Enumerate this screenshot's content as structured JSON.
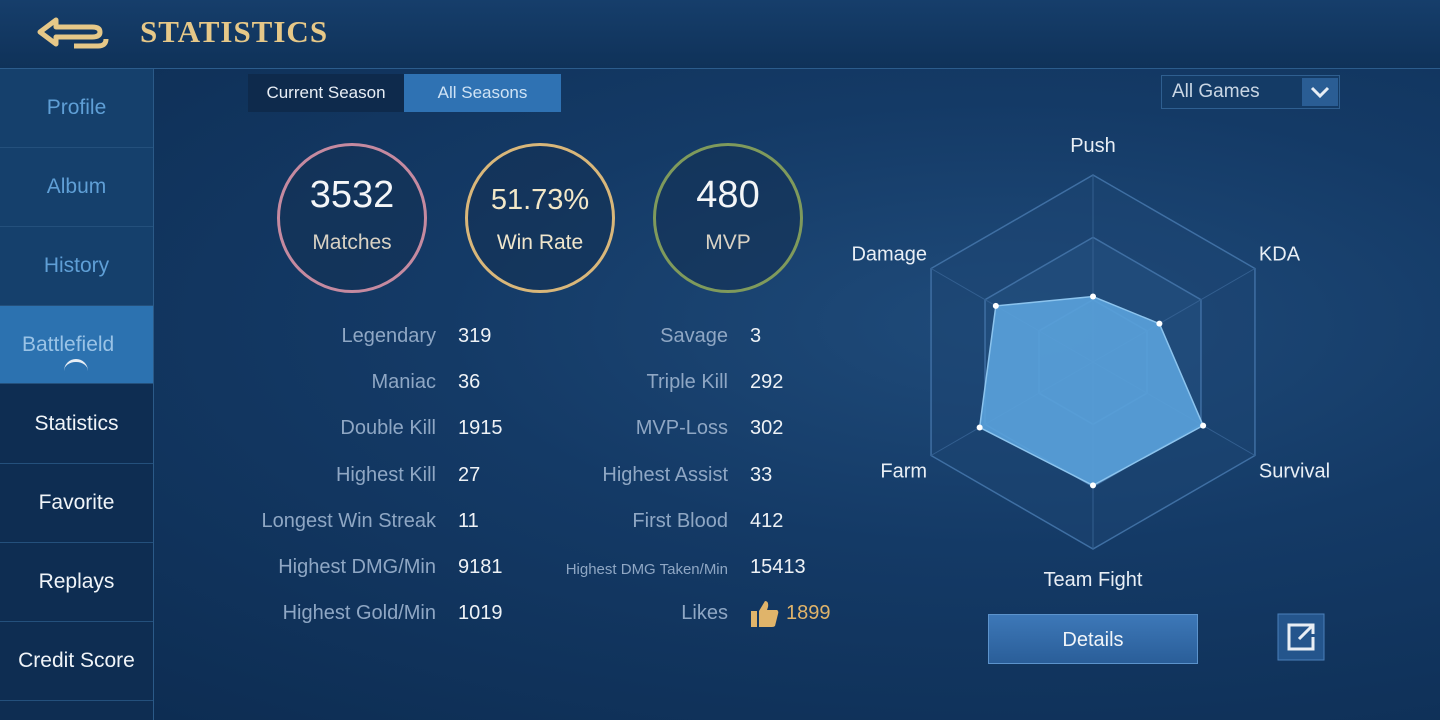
{
  "header": {
    "title": "STATISTICS"
  },
  "sidebar": [
    "Profile",
    "Album",
    "History",
    "Battlefield",
    "Statistics",
    "Favorite",
    "Replays",
    "Credit Score"
  ],
  "tabs": [
    "Current Season",
    "All Seasons"
  ],
  "filter": "All Games",
  "summary": [
    {
      "value": "3532",
      "label": "Matches"
    },
    {
      "value": "51.73%",
      "label": "Win Rate"
    },
    {
      "value": "480",
      "label": "MVP"
    }
  ],
  "stats": {
    "left": [
      {
        "label": "Legendary",
        "value": "319"
      },
      {
        "label": "Maniac",
        "value": "36"
      },
      {
        "label": "Double Kill",
        "value": "1915"
      },
      {
        "label": "Highest Kill",
        "value": "27"
      },
      {
        "label": "Longest Win Streak",
        "value": "11"
      },
      {
        "label": "Highest DMG/Min",
        "value": "9181"
      },
      {
        "label": "Highest Gold/Min",
        "value": "1019"
      }
    ],
    "right": [
      {
        "label": "Savage",
        "value": "3"
      },
      {
        "label": "Triple Kill",
        "value": "292"
      },
      {
        "label": "MVP-Loss",
        "value": "302"
      },
      {
        "label": "Highest Assist",
        "value": "33"
      },
      {
        "label": "First Blood",
        "value": "412"
      },
      {
        "label": "Highest DMG Taken/Min",
        "value": "15413"
      },
      {
        "label": "Likes",
        "value": "1899"
      }
    ]
  },
  "radar": {
    "axes": [
      "Push",
      "KDA",
      "Survival",
      "Team Fight",
      "Farm",
      "Damage"
    ],
    "values": [
      35,
      41,
      68,
      66,
      70,
      60
    ],
    "rlim": [
      0,
      100
    ]
  },
  "details_button": "Details"
}
